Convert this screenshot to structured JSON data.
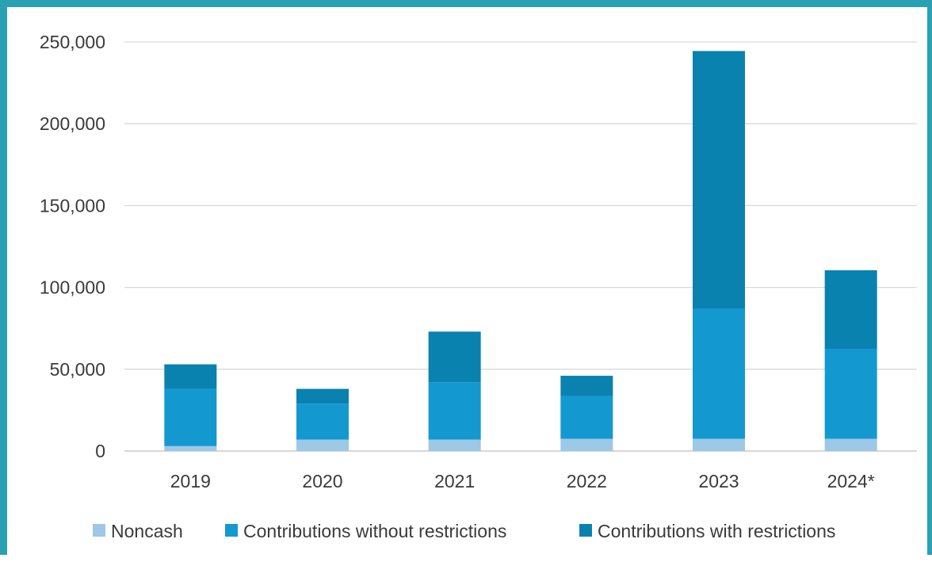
{
  "chart_data": {
    "type": "bar",
    "stacked": true,
    "categories": [
      "2019",
      "2020",
      "2021",
      "2022",
      "2023",
      "2024*"
    ],
    "series": [
      {
        "name": "Noncash",
        "color": "#9dc8e6",
        "values": [
          3000,
          7000,
          7000,
          7500,
          7500,
          7500
        ]
      },
      {
        "name": "Contributions without restrictions",
        "color": "#1399d0",
        "values": [
          35000,
          22000,
          35000,
          26000,
          79500,
          55000
        ]
      },
      {
        "name": "Contributions with restrictions",
        "color": "#0a82b0",
        "values": [
          15000,
          9000,
          31000,
          12500,
          157500,
          48000
        ]
      }
    ],
    "ylim": [
      0,
      250000
    ],
    "yticks": [
      0,
      50000,
      100000,
      150000,
      200000,
      250000
    ],
    "ytick_labels": [
      "0",
      "50,000",
      "100,000",
      "150,000",
      "200,000",
      "250,000"
    ],
    "grid": true,
    "legend_position": "bottom",
    "title": "",
    "xlabel": "",
    "ylabel": ""
  }
}
